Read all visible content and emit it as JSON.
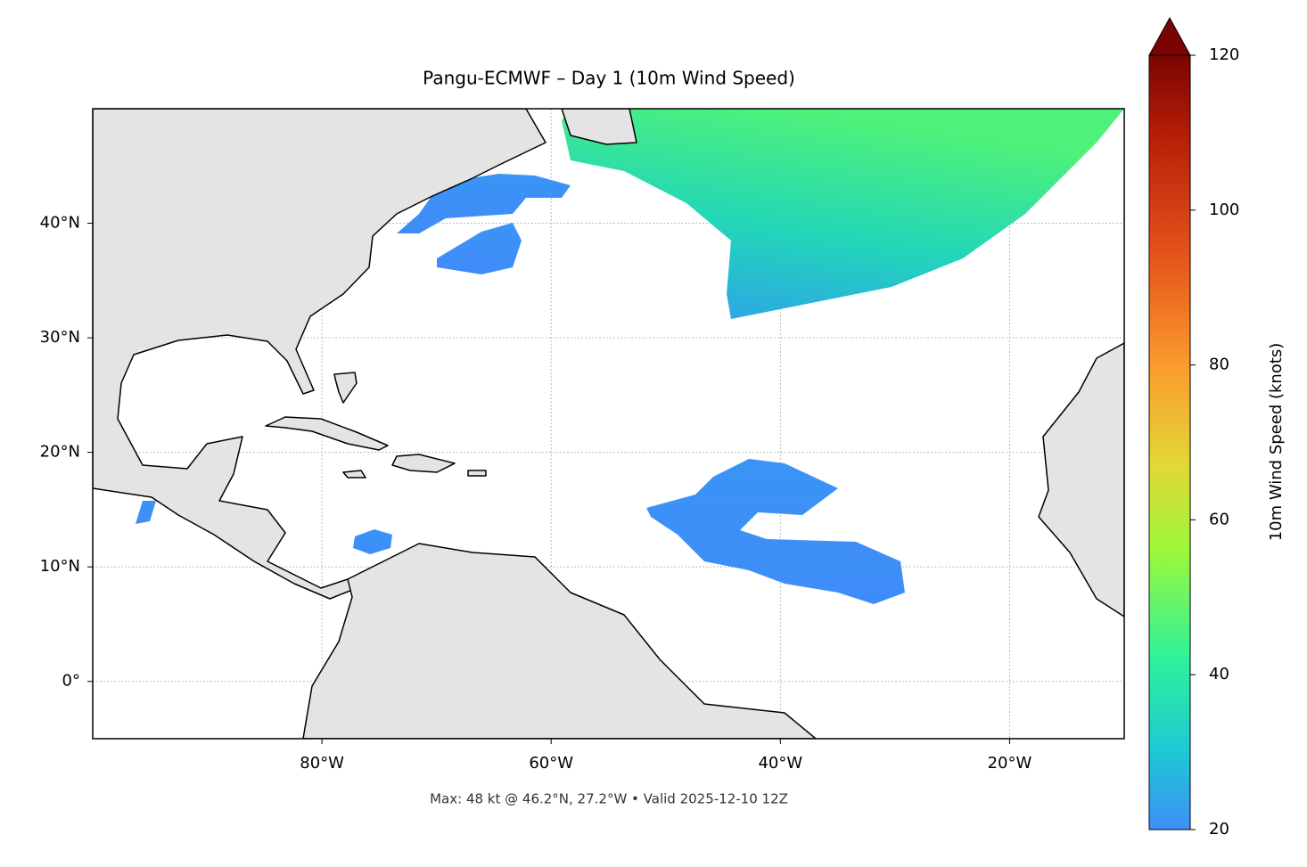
{
  "chart_data": {
    "type": "map",
    "title": "Pangu-ECMWF – Day 1 (10m Wind Speed)",
    "footer": "Max: 48 kt @ 46.2°N, 27.2°W • Valid 2025-12-10 12Z",
    "xlim": [
      -100,
      -10
    ],
    "ylim": [
      -5,
      50
    ],
    "xticks": [
      {
        "value": -80,
        "label": "80°W"
      },
      {
        "value": -60,
        "label": "60°W"
      },
      {
        "value": -40,
        "label": "40°W"
      },
      {
        "value": -20,
        "label": "20°W"
      }
    ],
    "yticks": [
      {
        "value": 0,
        "label": "0°"
      },
      {
        "value": 10,
        "label": "10°N"
      },
      {
        "value": 20,
        "label": "20°N"
      },
      {
        "value": 30,
        "label": "30°N"
      },
      {
        "value": 40,
        "label": "40°N"
      }
    ],
    "grid": true,
    "colorbar": {
      "label": "10m Wind Speed (knots)",
      "lim": [
        20,
        120
      ],
      "ticks": [
        20,
        40,
        60,
        80,
        100,
        120
      ]
    }
  }
}
